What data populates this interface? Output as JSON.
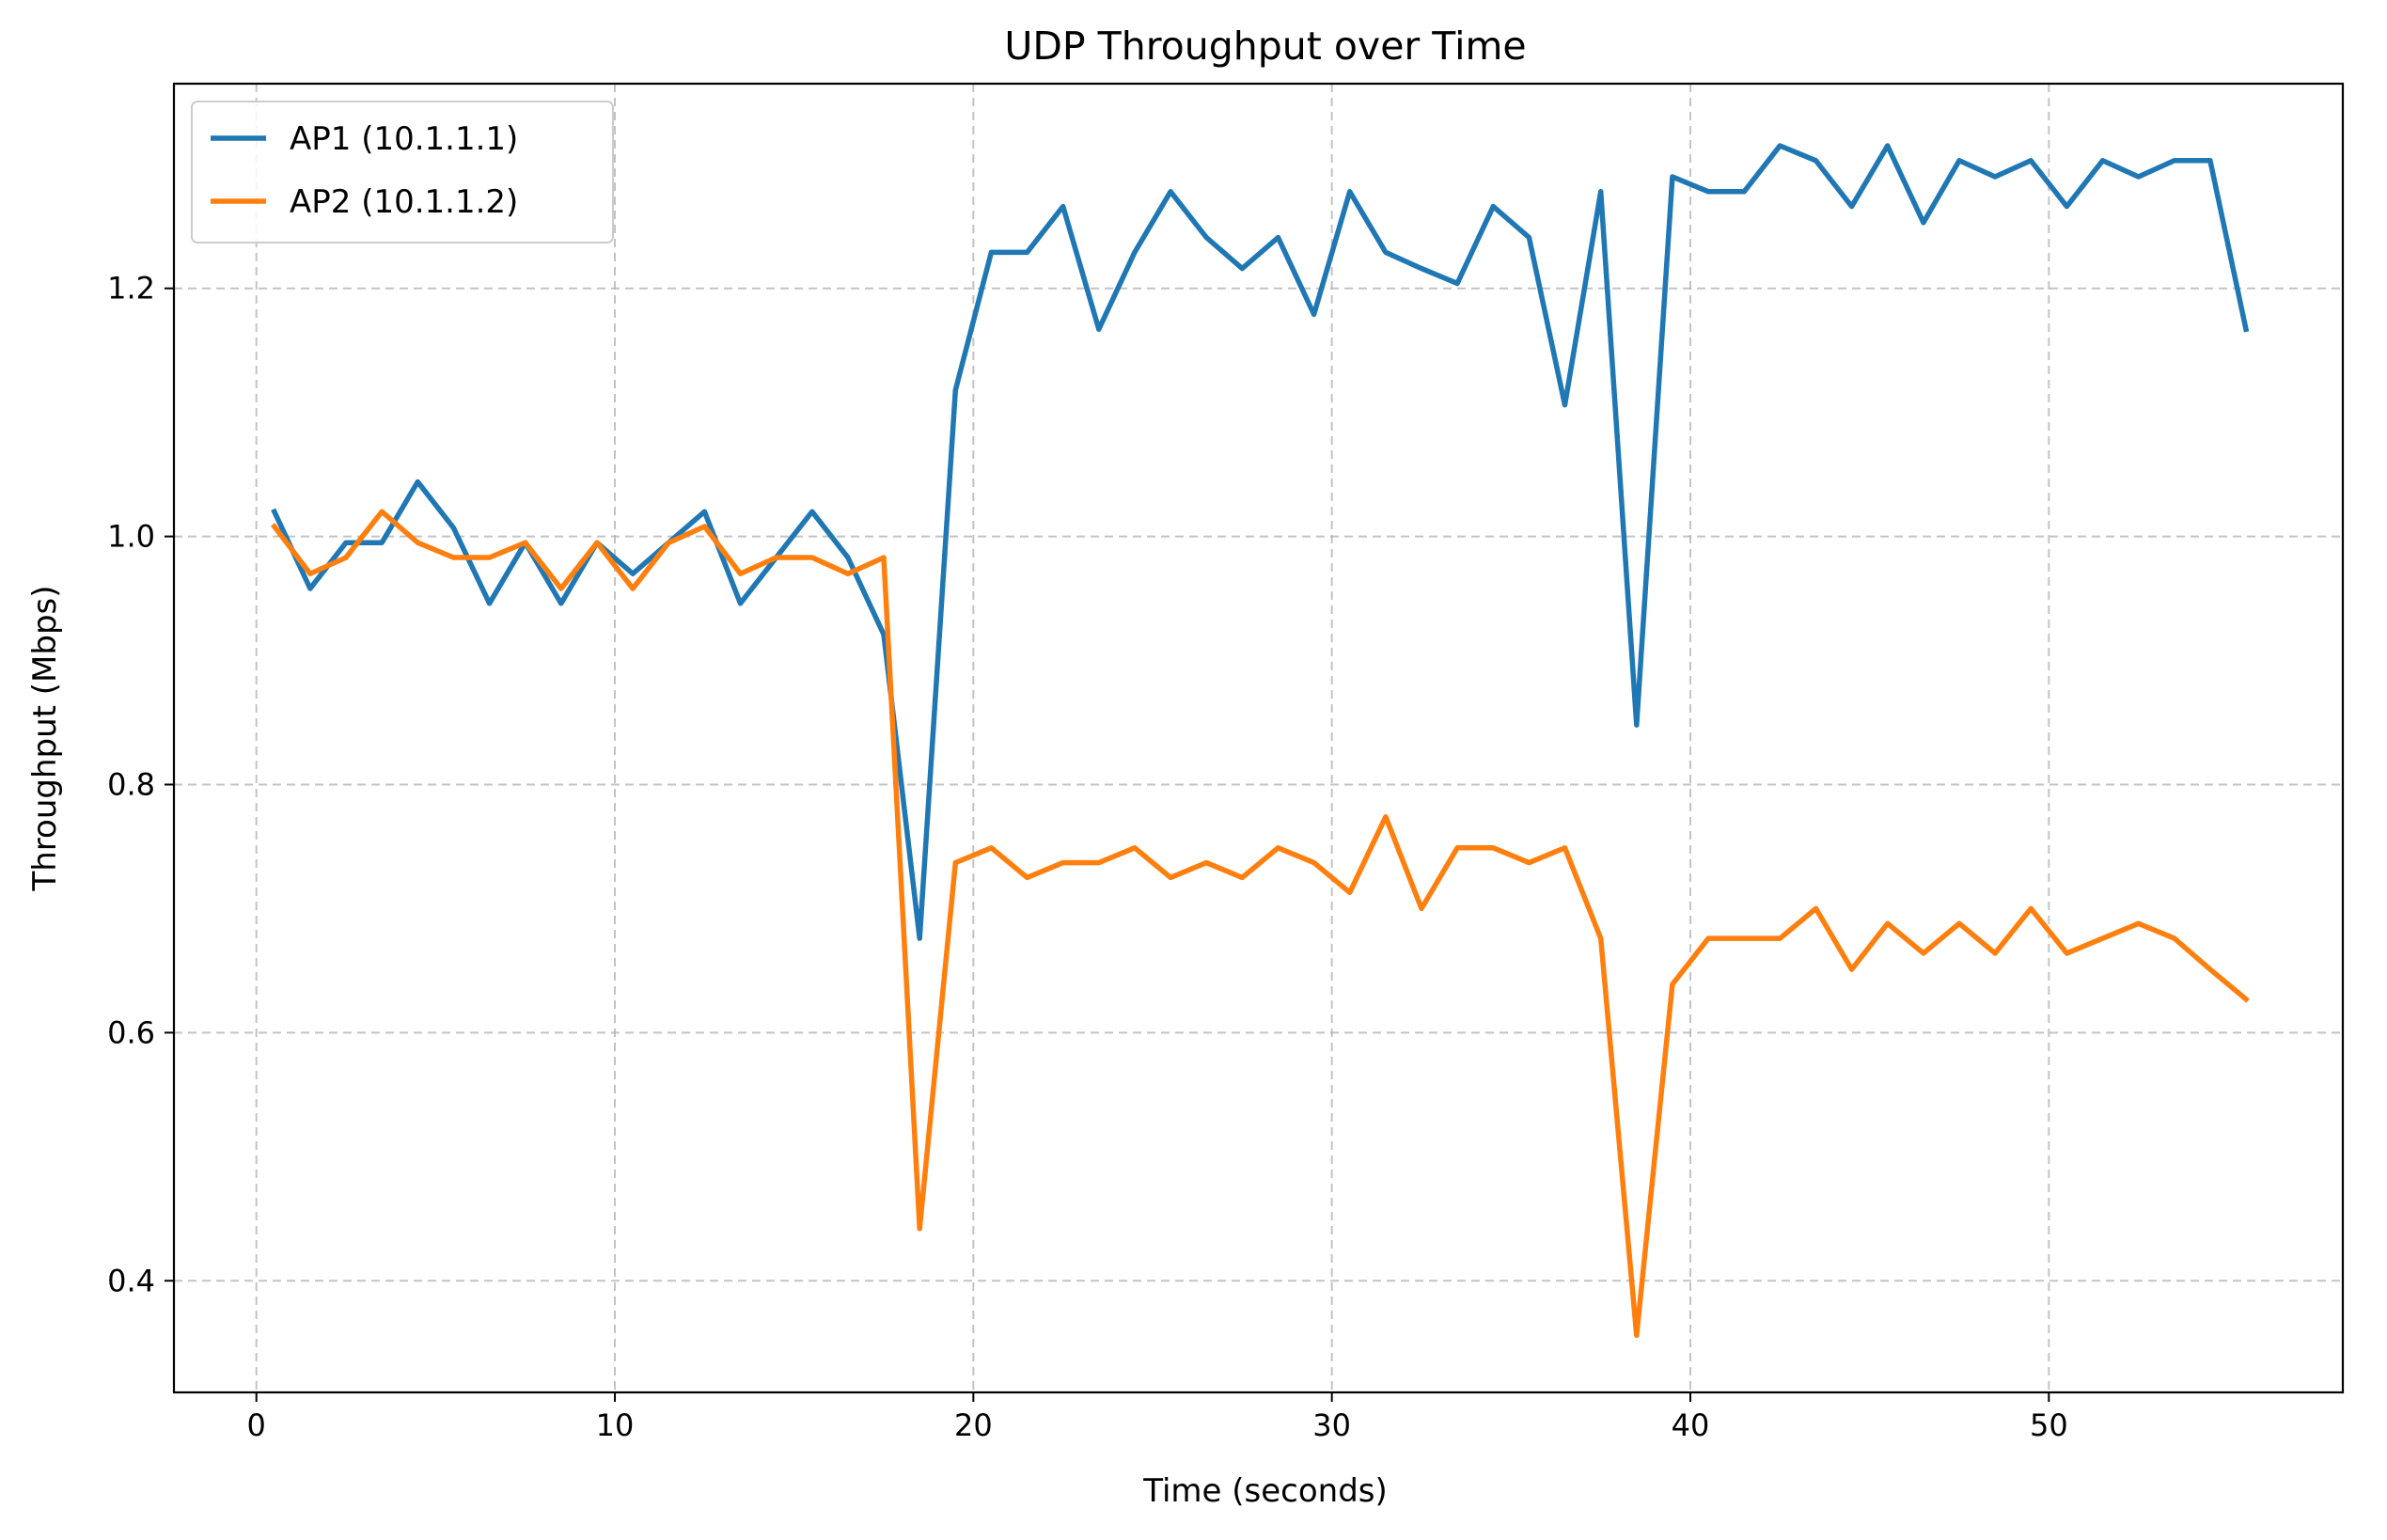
{
  "chart_data": {
    "type": "line",
    "title": "UDP Throughput over Time",
    "xlabel": "Time (seconds)",
    "ylabel": "Throughput (Mbps)",
    "xlim": [
      -2.3,
      58.2
    ],
    "ylim": [
      0.31,
      1.365
    ],
    "xticks": [
      0,
      10,
      20,
      30,
      40,
      50
    ],
    "xtick_labels": [
      "0",
      "10",
      "20",
      "30",
      "40",
      "50"
    ],
    "yticks": [
      0.4,
      0.6,
      0.8,
      1.0,
      1.2
    ],
    "ytick_labels": [
      "0.4",
      "0.6",
      "0.8",
      "1.0",
      "1.2"
    ],
    "grid": true,
    "legend_position": "top-left",
    "x": [
      0.5,
      1.5,
      2.5,
      3.5,
      4.5,
      5.5,
      6.5,
      7.5,
      8.5,
      9.5,
      10.5,
      11.5,
      12.5,
      13.5,
      14.5,
      15.5,
      16.5,
      17.5,
      18.5,
      19.5,
      20.5,
      21.5,
      22.5,
      23.5,
      24.5,
      25.5,
      26.5,
      27.5,
      28.5,
      29.5,
      30.5,
      31.5,
      32.5,
      33.5,
      34.5,
      35.5,
      36.5,
      37.5,
      38.5,
      39.5,
      40.5,
      41.5,
      42.5,
      43.5,
      44.5,
      45.5,
      46.5,
      47.5,
      48.5,
      49.5,
      50.5,
      51.5,
      52.5,
      53.5,
      54.5,
      55.5
    ],
    "series": [
      {
        "name": "AP1 (10.1.1.1)",
        "color": "#1f77b4",
        "values": [
          1.02,
          0.958,
          0.995,
          0.995,
          1.044,
          1.007,
          0.946,
          0.995,
          0.946,
          0.995,
          0.97,
          0.995,
          1.02,
          0.946,
          0.983,
          1.02,
          0.983,
          0.921,
          0.676,
          1.118,
          1.229,
          1.229,
          1.266,
          1.167,
          1.229,
          1.278,
          1.241,
          1.216,
          1.241,
          1.179,
          1.278,
          1.229,
          1.216,
          1.204,
          1.266,
          1.241,
          1.106,
          1.278,
          0.848,
          1.29,
          1.278,
          1.278,
          1.315,
          1.303,
          1.266,
          1.315,
          1.253,
          1.303,
          1.29,
          1.303,
          1.266,
          1.303,
          1.29,
          1.303,
          1.303,
          1.167
        ]
      },
      {
        "name": "AP2 (10.1.1.2)",
        "color": "#ff7f0e",
        "values": [
          1.008,
          0.97,
          0.983,
          1.02,
          0.995,
          0.983,
          0.983,
          0.995,
          0.958,
          0.995,
          0.958,
          0.995,
          1.008,
          0.97,
          0.983,
          0.983,
          0.97,
          0.983,
          0.442,
          0.737,
          0.749,
          0.725,
          0.737,
          0.737,
          0.749,
          0.725,
          0.737,
          0.725,
          0.749,
          0.737,
          0.713,
          0.774,
          0.7,
          0.749,
          0.749,
          0.737,
          0.749,
          0.676,
          0.356,
          0.639,
          0.676,
          0.676,
          0.676,
          0.7,
          0.651,
          0.688,
          0.664,
          0.688,
          0.664,
          0.7,
          0.664,
          0.676,
          0.688,
          0.676,
          0.651,
          0.627
        ]
      }
    ]
  }
}
